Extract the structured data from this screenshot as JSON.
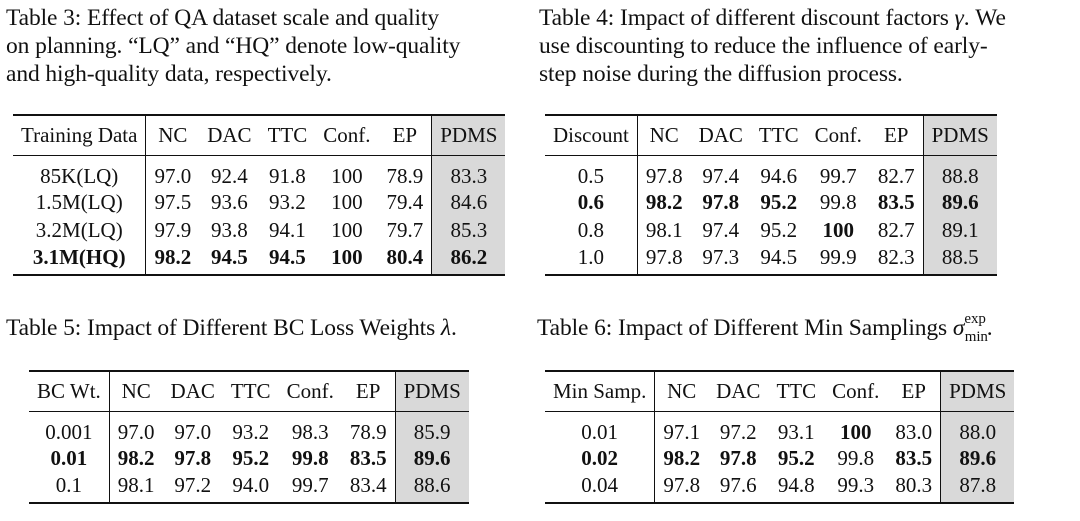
{
  "tables": [
    {
      "caption": "Table 3: Effect of QA dataset scale and quality on planning. “LQ” and “HQ” denote low-quality and high-quality data, respectively.",
      "caption_lines": [
        "Table 3: Effect of QA dataset scale and quality",
        "on planning. “LQ” and “HQ” denote low-quality",
        "and high-quality data, respectively."
      ],
      "headers": [
        "Training Data",
        "NC",
        "DAC",
        "TTC",
        "Conf.",
        "EP",
        "PDMS"
      ],
      "rows": [
        {
          "cells": [
            "85K(LQ)",
            "97.0",
            "92.4",
            "91.8",
            "100",
            "78.9",
            "83.3"
          ],
          "bold": [
            false,
            false,
            false,
            false,
            false,
            false,
            false
          ]
        },
        {
          "cells": [
            "1.5M(LQ)",
            "97.5",
            "93.6",
            "93.2",
            "100",
            "79.4",
            "84.6"
          ],
          "bold": [
            false,
            false,
            false,
            false,
            false,
            false,
            false
          ]
        },
        {
          "cells": [
            "3.2M(LQ)",
            "97.9",
            "93.8",
            "94.1",
            "100",
            "79.7",
            "85.3"
          ],
          "bold": [
            false,
            false,
            false,
            false,
            false,
            false,
            false
          ]
        },
        {
          "cells": [
            "3.1M(HQ)",
            "98.2",
            "94.5",
            "94.5",
            "100",
            "80.4",
            "86.2"
          ],
          "bold": [
            true,
            true,
            true,
            true,
            true,
            true,
            true
          ]
        }
      ]
    },
    {
      "caption": "Table 4: Impact of different discount factors γ. We use discounting to reduce the influence of early-step noise during the diffusion process.",
      "caption_lines": [
        "Table 4: Impact of different discount factors ",
        "γ",
        ". We",
        "use discounting to reduce the influence of early-",
        "step noise during the diffusion process."
      ],
      "headers": [
        "Discount",
        "NC",
        "DAC",
        "TTC",
        "Conf.",
        "EP",
        "PDMS"
      ],
      "rows": [
        {
          "cells": [
            "0.5",
            "97.8",
            "97.4",
            "94.6",
            "99.7",
            "82.7",
            "88.8"
          ],
          "bold": [
            false,
            false,
            false,
            false,
            false,
            false,
            false
          ]
        },
        {
          "cells": [
            "0.6",
            "98.2",
            "97.8",
            "95.2",
            "99.8",
            "83.5",
            "89.6"
          ],
          "bold": [
            true,
            true,
            true,
            true,
            false,
            true,
            true
          ]
        },
        {
          "cells": [
            "0.8",
            "98.1",
            "97.4",
            "95.2",
            "100",
            "82.7",
            "89.1"
          ],
          "bold": [
            false,
            false,
            false,
            false,
            true,
            false,
            false
          ]
        },
        {
          "cells": [
            "1.0",
            "97.8",
            "97.3",
            "94.5",
            "99.9",
            "82.3",
            "88.5"
          ],
          "bold": [
            false,
            false,
            false,
            false,
            false,
            false,
            false
          ]
        }
      ]
    },
    {
      "caption": "Table 5: Impact of Different BC Loss Weights λ.",
      "caption_lines": [
        "Table 5: Impact of Different BC Loss Weights ",
        "λ",
        "."
      ],
      "headers": [
        "BC Wt.",
        "NC",
        "DAC",
        "TTC",
        "Conf.",
        "EP",
        "PDMS"
      ],
      "rows": [
        {
          "cells": [
            "0.001",
            "97.0",
            "97.0",
            "93.2",
            "98.3",
            "78.9",
            "85.9"
          ],
          "bold": [
            false,
            false,
            false,
            false,
            false,
            false,
            false
          ]
        },
        {
          "cells": [
            "0.01",
            "98.2",
            "97.8",
            "95.2",
            "99.8",
            "83.5",
            "89.6"
          ],
          "bold": [
            true,
            true,
            true,
            true,
            true,
            true,
            true
          ]
        },
        {
          "cells": [
            "0.1",
            "98.1",
            "97.2",
            "94.0",
            "99.7",
            "83.4",
            "88.6"
          ],
          "bold": [
            false,
            false,
            false,
            false,
            false,
            false,
            false
          ]
        }
      ]
    },
    {
      "caption": "Table 6: Impact of Different Min Samplings σ_min^exp.",
      "caption_lines": [
        "Table 6: Impact of Different Min Samplings ",
        "σ",
        "exp",
        "min",
        "."
      ],
      "headers": [
        "Min Samp.",
        "NC",
        "DAC",
        "TTC",
        "Conf.",
        "EP",
        "PDMS"
      ],
      "rows": [
        {
          "cells": [
            "0.01",
            "97.1",
            "97.2",
            "93.1",
            "100",
            "83.0",
            "88.0"
          ],
          "bold": [
            false,
            false,
            false,
            false,
            true,
            false,
            false
          ]
        },
        {
          "cells": [
            "0.02",
            "98.2",
            "97.8",
            "95.2",
            "99.8",
            "83.5",
            "89.6"
          ],
          "bold": [
            true,
            true,
            true,
            true,
            false,
            true,
            true
          ]
        },
        {
          "cells": [
            "0.04",
            "97.8",
            "97.6",
            "94.8",
            "99.3",
            "80.3",
            "87.8"
          ],
          "bold": [
            false,
            false,
            false,
            false,
            false,
            false,
            false
          ]
        }
      ]
    }
  ]
}
